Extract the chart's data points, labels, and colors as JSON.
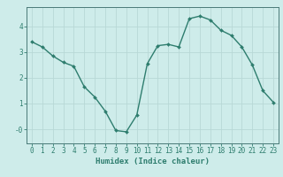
{
  "x": [
    0,
    1,
    2,
    3,
    4,
    5,
    6,
    7,
    8,
    9,
    10,
    11,
    12,
    13,
    14,
    15,
    16,
    17,
    18,
    19,
    20,
    21,
    22,
    23
  ],
  "y": [
    3.4,
    3.2,
    2.85,
    2.6,
    2.45,
    1.65,
    1.25,
    0.7,
    -0.05,
    -0.1,
    0.55,
    2.55,
    3.25,
    3.3,
    3.2,
    4.3,
    4.4,
    4.25,
    3.85,
    3.65,
    3.2,
    2.5,
    1.5,
    1.05
  ],
  "line_color": "#2e7d6e",
  "marker": "D",
  "marker_size": 2.0,
  "bg_color": "#ceecea",
  "grid_color_major": "#b8d8d6",
  "grid_color_minor": "#c8e8e6",
  "xlabel": "Humidex (Indice chaleur)",
  "xlim": [
    -0.5,
    23.5
  ],
  "ylim": [
    -0.55,
    4.75
  ],
  "yticks": [
    0,
    1,
    2,
    3,
    4
  ],
  "ytick_labels": [
    "-0",
    "1",
    "2",
    "3",
    "4"
  ],
  "xticks": [
    0,
    1,
    2,
    3,
    4,
    5,
    6,
    7,
    8,
    9,
    10,
    11,
    12,
    13,
    14,
    15,
    16,
    17,
    18,
    19,
    20,
    21,
    22,
    23
  ],
  "label_fontsize": 6.5,
  "tick_fontsize": 5.5,
  "linewidth": 1.0
}
